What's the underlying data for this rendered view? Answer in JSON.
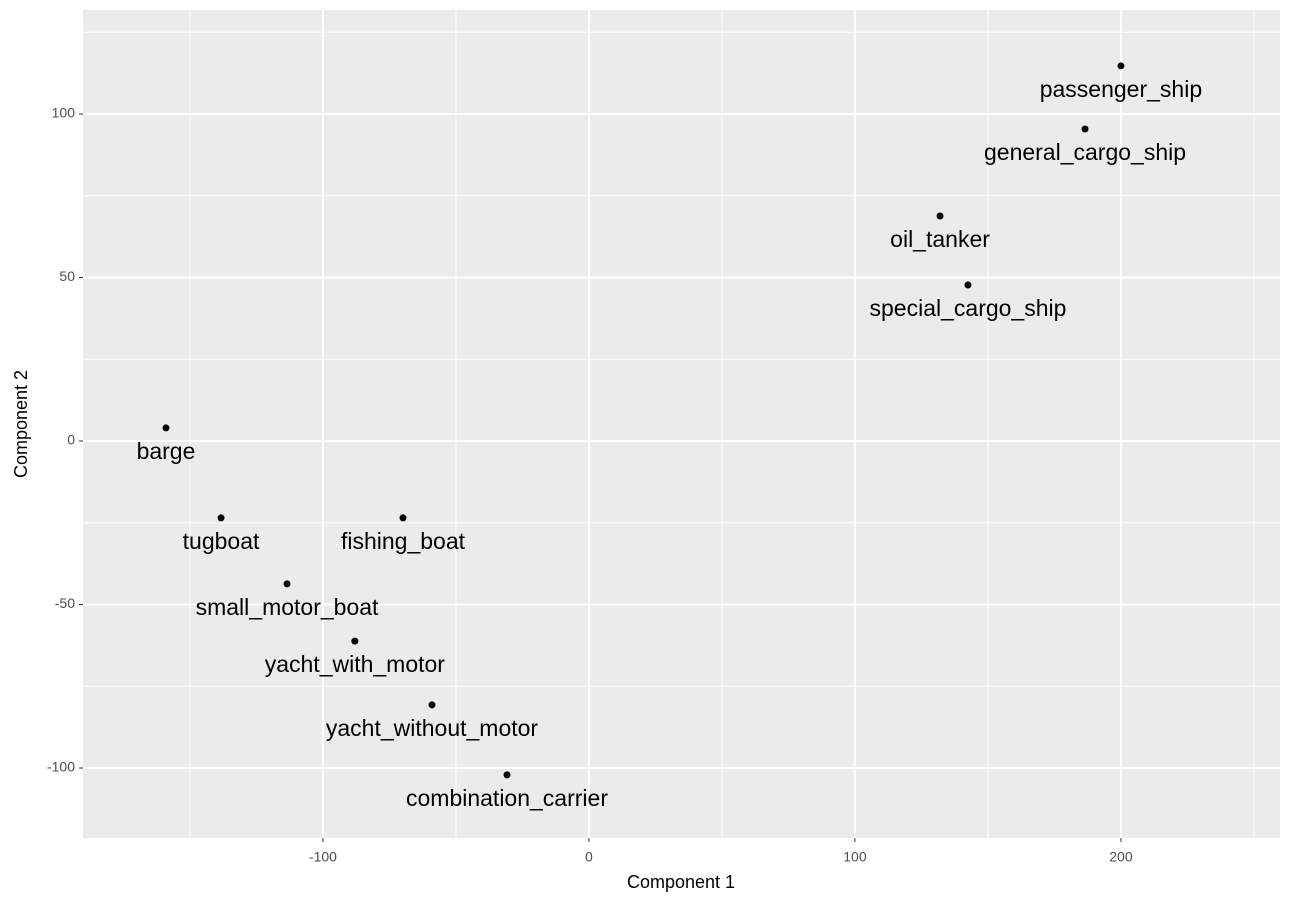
{
  "chart_data": {
    "type": "scatter",
    "x_label": "Component 1",
    "y_label": "Component 2",
    "labels": [
      "passenger_ship",
      "general_cargo_ship",
      "oil_tanker",
      "special_cargo_ship",
      "barge",
      "tugboat",
      "fishing_boat",
      "small_motor_boat",
      "yacht_with_motor",
      "yacht_without_motor",
      "combination_carrier"
    ],
    "x": [
      200,
      186.5,
      132,
      142.5,
      -159,
      -138.3,
      -69.9,
      -113.5,
      -88,
      -59,
      -30.8
    ],
    "values": [
      114.7,
      95.4,
      68.8,
      47.7,
      4,
      -23.5,
      -23.5,
      -43.7,
      -61.2,
      -80.7,
      -102.1
    ],
    "color": "#000000",
    "xlim": [
      -190.2,
      259.8
    ],
    "ylim": [
      -121.4,
      131.8
    ],
    "xticks": [
      -100,
      0,
      100,
      200
    ],
    "yticks": [
      -100,
      -50,
      0,
      50,
      100
    ],
    "grid": true
  }
}
